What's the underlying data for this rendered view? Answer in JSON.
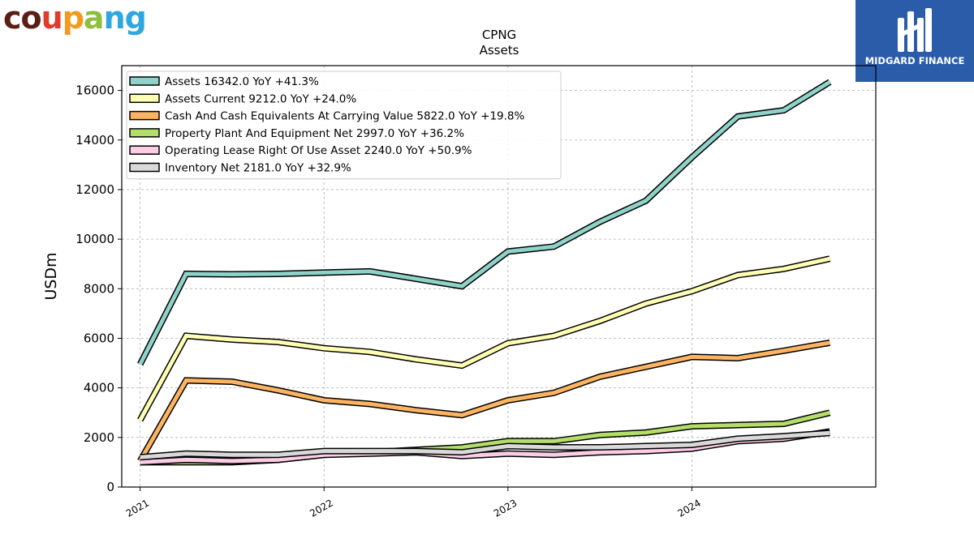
{
  "logos": {
    "left_text": "coupang",
    "left_letter_colors": [
      "#5a1f14",
      "#5a1f14",
      "#e03b2c",
      "#f29a1f",
      "#8dbf3c",
      "#2ea7e0",
      "#2ea7e0"
    ],
    "right_text": "MIDGARD FINANCE",
    "right_bg": "#2a5caa"
  },
  "chart_data": {
    "type": "line",
    "title": "CPNG",
    "subtitle": "Assets",
    "ylabel": "USDm",
    "xlabel": "",
    "ylim": [
      0,
      17000
    ],
    "yticks": [
      0,
      2000,
      4000,
      6000,
      8000,
      10000,
      12000,
      14000,
      16000
    ],
    "xlim": [
      2020.9,
      2025.0
    ],
    "xticks": [
      {
        "value": 2021.0,
        "label": "2021"
      },
      {
        "value": 2022.0,
        "label": "2022"
      },
      {
        "value": 2023.0,
        "label": "2023"
      },
      {
        "value": 2024.0,
        "label": "2024"
      }
    ],
    "grid": true,
    "legend_position": "top-left",
    "x": [
      2021.0,
      2021.25,
      2021.5,
      2021.75,
      2022.0,
      2022.25,
      2022.5,
      2022.75,
      2023.0,
      2023.25,
      2023.5,
      2023.75,
      2024.0,
      2024.25,
      2024.5,
      2024.75
    ],
    "series": [
      {
        "name": "Assets  16342.0 YoY +41.3%",
        "color": "#8dd3c7",
        "values": [
          4950,
          8600,
          8580,
          8600,
          8650,
          8700,
          8400,
          8100,
          9500,
          9700,
          10700,
          11550,
          13300,
          14950,
          15200,
          16342
        ]
      },
      {
        "name": "Assets Current  9212.0 YoY +24.0%",
        "color": "#ffffb3",
        "values": [
          2700,
          6100,
          5950,
          5850,
          5600,
          5450,
          5150,
          4900,
          5800,
          6100,
          6700,
          7400,
          7900,
          8550,
          8800,
          9212
        ]
      },
      {
        "name": "Cash And Cash Equivalents At Carrying Value  5822.0 YoY +19.8%",
        "color": "#fdb462",
        "values": [
          1050,
          4300,
          4250,
          3900,
          3500,
          3350,
          3100,
          2900,
          3500,
          3800,
          4450,
          4850,
          5250,
          5200,
          5500,
          5822
        ]
      },
      {
        "name": "Property Plant And Equipment Net  2997.0 YoY +36.2%",
        "color": "#b3de69",
        "values": [
          1000,
          1000,
          1000,
          1100,
          1300,
          1400,
          1500,
          1600,
          1850,
          1850,
          2100,
          2200,
          2450,
          2500,
          2550,
          2997
        ]
      },
      {
        "name": "Operating Lease Right Of Use Asset  2240.0 YoY +50.9%",
        "color": "#fccde5",
        "values": [
          1000,
          1100,
          1050,
          1100,
          1300,
          1350,
          1400,
          1250,
          1350,
          1300,
          1400,
          1450,
          1550,
          1850,
          1950,
          2240
        ]
      },
      {
        "name": "Inventory Net  2181.0 YoY +32.9%",
        "color": "#d9d9d9",
        "values": [
          1200,
          1350,
          1300,
          1300,
          1450,
          1450,
          1450,
          1400,
          1650,
          1600,
          1600,
          1650,
          1700,
          1950,
          2050,
          2181
        ]
      }
    ]
  }
}
